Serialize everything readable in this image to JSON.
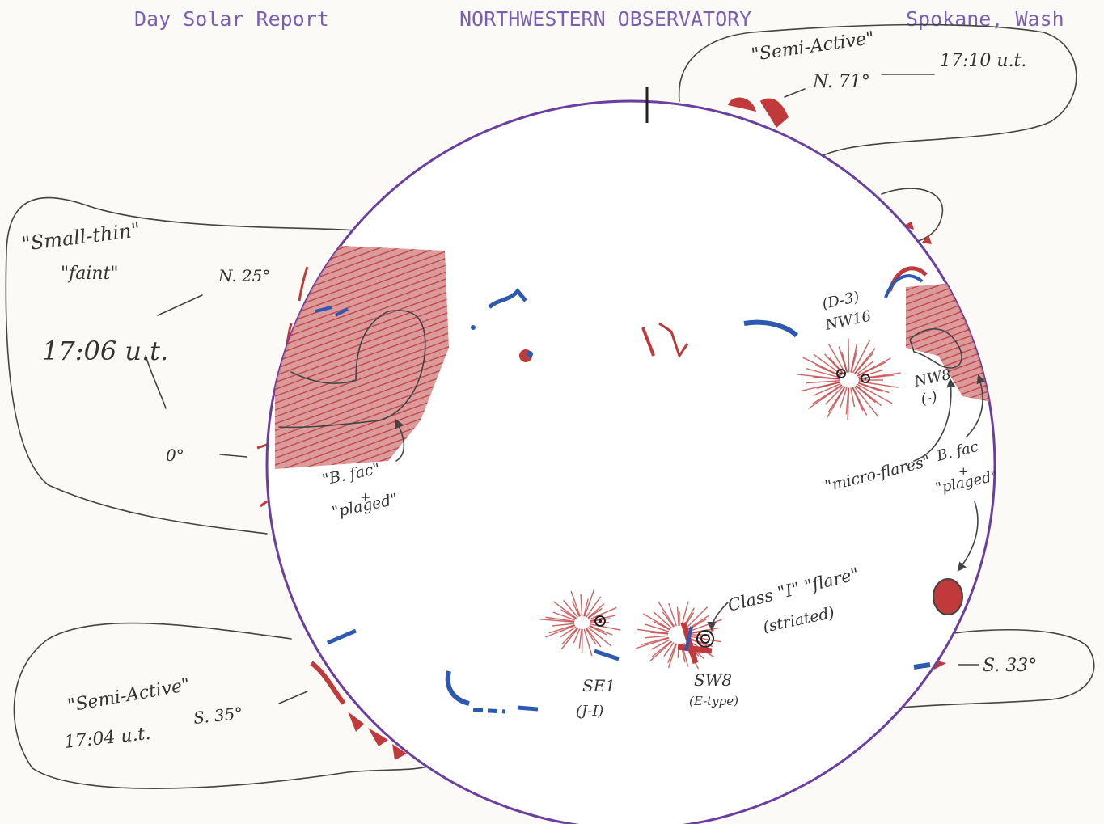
{
  "header": {
    "report_title": "Day Solar Report",
    "observatory": "NORTHWESTERN OBSERVATORY",
    "location": "Spokane, Wash"
  },
  "colors": {
    "typed_text": "#7a5fb5",
    "limb": "#6a3fa0",
    "plage_red": "#c0393b",
    "filament_blue": "#2e59b0",
    "pencil": "#444444"
  },
  "annotations": {
    "north_prominence": {
      "type": "\"Semi-Active\"",
      "position": "N. 71°",
      "time": "17:10 u.t."
    },
    "east_prominence": {
      "type": "\"Small-thin\"",
      "brightness": "\"faint\"",
      "position": "N. 25°",
      "time": "17:06 u.t.",
      "zero": "0°"
    },
    "southeast_prominence": {
      "type": "\"Semi-Active\"",
      "time": "17:04 u.t.",
      "position": "S. 35°"
    },
    "southwest_prominence": {
      "position": "S. 33°"
    },
    "east_plage": {
      "line1": "\"B. fac\"",
      "line2": "+",
      "line3": "\"plaged\""
    },
    "west_plage": {
      "line1": "B. fac",
      "line2": "+",
      "line3": "\"plaged\""
    },
    "region_nw16": {
      "class": "(D-3)",
      "label": "NW16"
    },
    "region_nw8": {
      "label": "NW8",
      "class": "(-)"
    },
    "micro_flares": "\"micro-flares\"",
    "region_se1": {
      "label": "SE1",
      "class": "(J-I)"
    },
    "region_sw8": {
      "label": "SW8",
      "class": "(E-type)"
    },
    "flare": {
      "line1": "Class \"I\" \"flare\"",
      "line2": "(striated)"
    }
  }
}
